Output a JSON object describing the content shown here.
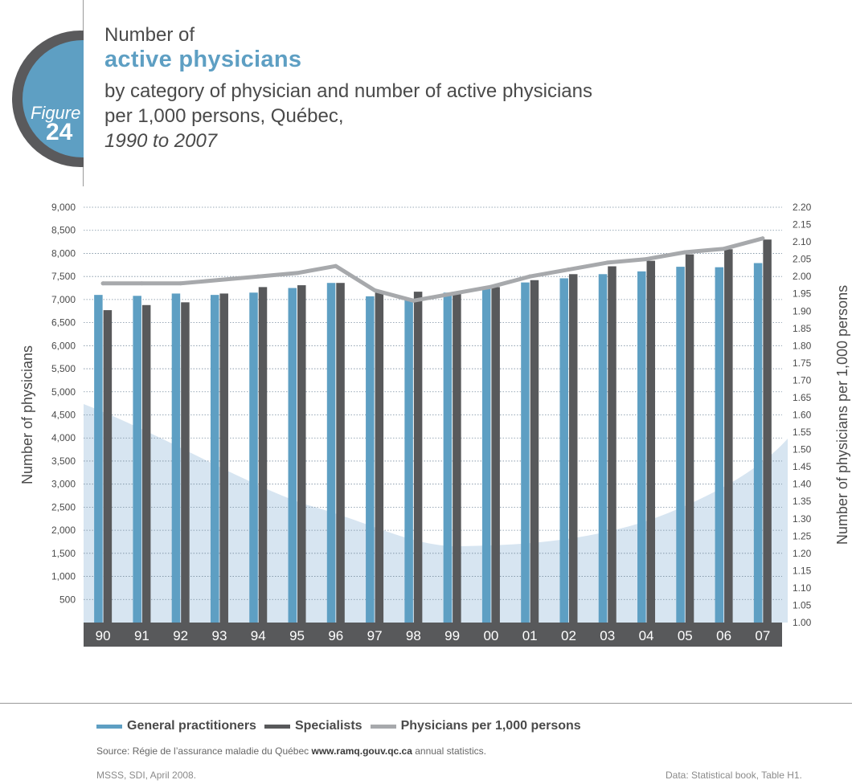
{
  "figure": {
    "word": "Figure",
    "number": "24"
  },
  "title": {
    "line1": "Number of",
    "line2": "active physicians",
    "line3": "by category of physician and number of active physicians",
    "line4": "per 1,000 persons, Québec,",
    "line5": "1990 to 2007"
  },
  "colors": {
    "gp": "#5e9fc3",
    "spec": "#58595b",
    "rate": "#a7a9ac",
    "accent": "#5e9fc3",
    "axisband": "#58595b",
    "area": "#c9dcec"
  },
  "legend": [
    {
      "label": "General practitioners",
      "color": "#5e9fc3"
    },
    {
      "label": "Specialists",
      "color": "#58595b"
    },
    {
      "label": "Physicians per 1,000 persons",
      "color": "#a7a9ac"
    }
  ],
  "source": {
    "prefix": "Source: Régie de l’assurance maladie du Québec",
    "url": "www.ramq.gouv.qc.ca",
    "suffix": "annual statistics."
  },
  "footer": {
    "left": "MSSS, SDI, April 2008.",
    "right": "Data: Statistical book, Table H1."
  },
  "chart_data": {
    "type": "bar",
    "categories": [
      "90",
      "91",
      "92",
      "93",
      "94",
      "95",
      "96",
      "97",
      "98",
      "99",
      "00",
      "01",
      "02",
      "03",
      "04",
      "05",
      "06",
      "07"
    ],
    "series": [
      {
        "name": "General practitioners",
        "type": "bar",
        "axis": "left",
        "values": [
          7100,
          7080,
          7130,
          7100,
          7150,
          7250,
          7360,
          7070,
          7000,
          7150,
          7240,
          7370,
          7460,
          7550,
          7610,
          7710,
          7700,
          7790
        ]
      },
      {
        "name": "Specialists",
        "type": "bar",
        "axis": "left",
        "values": [
          6770,
          6880,
          6940,
          7130,
          7270,
          7310,
          7360,
          7150,
          7170,
          7140,
          7270,
          7420,
          7550,
          7720,
          7840,
          7980,
          8090,
          8300
        ]
      },
      {
        "name": "Physicians per 1,000 persons",
        "type": "line",
        "axis": "right",
        "values": [
          1.98,
          1.98,
          1.98,
          1.99,
          2.0,
          2.01,
          2.03,
          1.96,
          1.93,
          1.95,
          1.97,
          2.0,
          2.02,
          2.04,
          2.05,
          2.07,
          2.08,
          2.11
        ]
      }
    ],
    "ylabel": "Number of physicians",
    "y2label": "Number of physicians per 1,000 persons",
    "ylim": [
      0,
      9000
    ],
    "y2lim": [
      1.0,
      2.2
    ],
    "yticks": [
      "9,000",
      "8,500",
      "8,000",
      "7,500",
      "7,000",
      "6,500",
      "6,000",
      "5,500",
      "5,000",
      "4,500",
      "4,000",
      "3,500",
      "3,000",
      "2,500",
      "2,000",
      "1,500",
      "1,000",
      "500"
    ],
    "y2ticks": [
      "2.20",
      "2.15",
      "2.10",
      "2.05",
      "2.00",
      "1.95",
      "1.90",
      "1.85",
      "1.80",
      "1.75",
      "1.70",
      "1.65",
      "1.60",
      "1.55",
      "1.50",
      "1.45",
      "1.40",
      "1.35",
      "1.30",
      "1.25",
      "1.20",
      "1.15",
      "1.10",
      "1.05",
      "1.00"
    ],
    "grid": true,
    "legend_position": "bottom"
  }
}
